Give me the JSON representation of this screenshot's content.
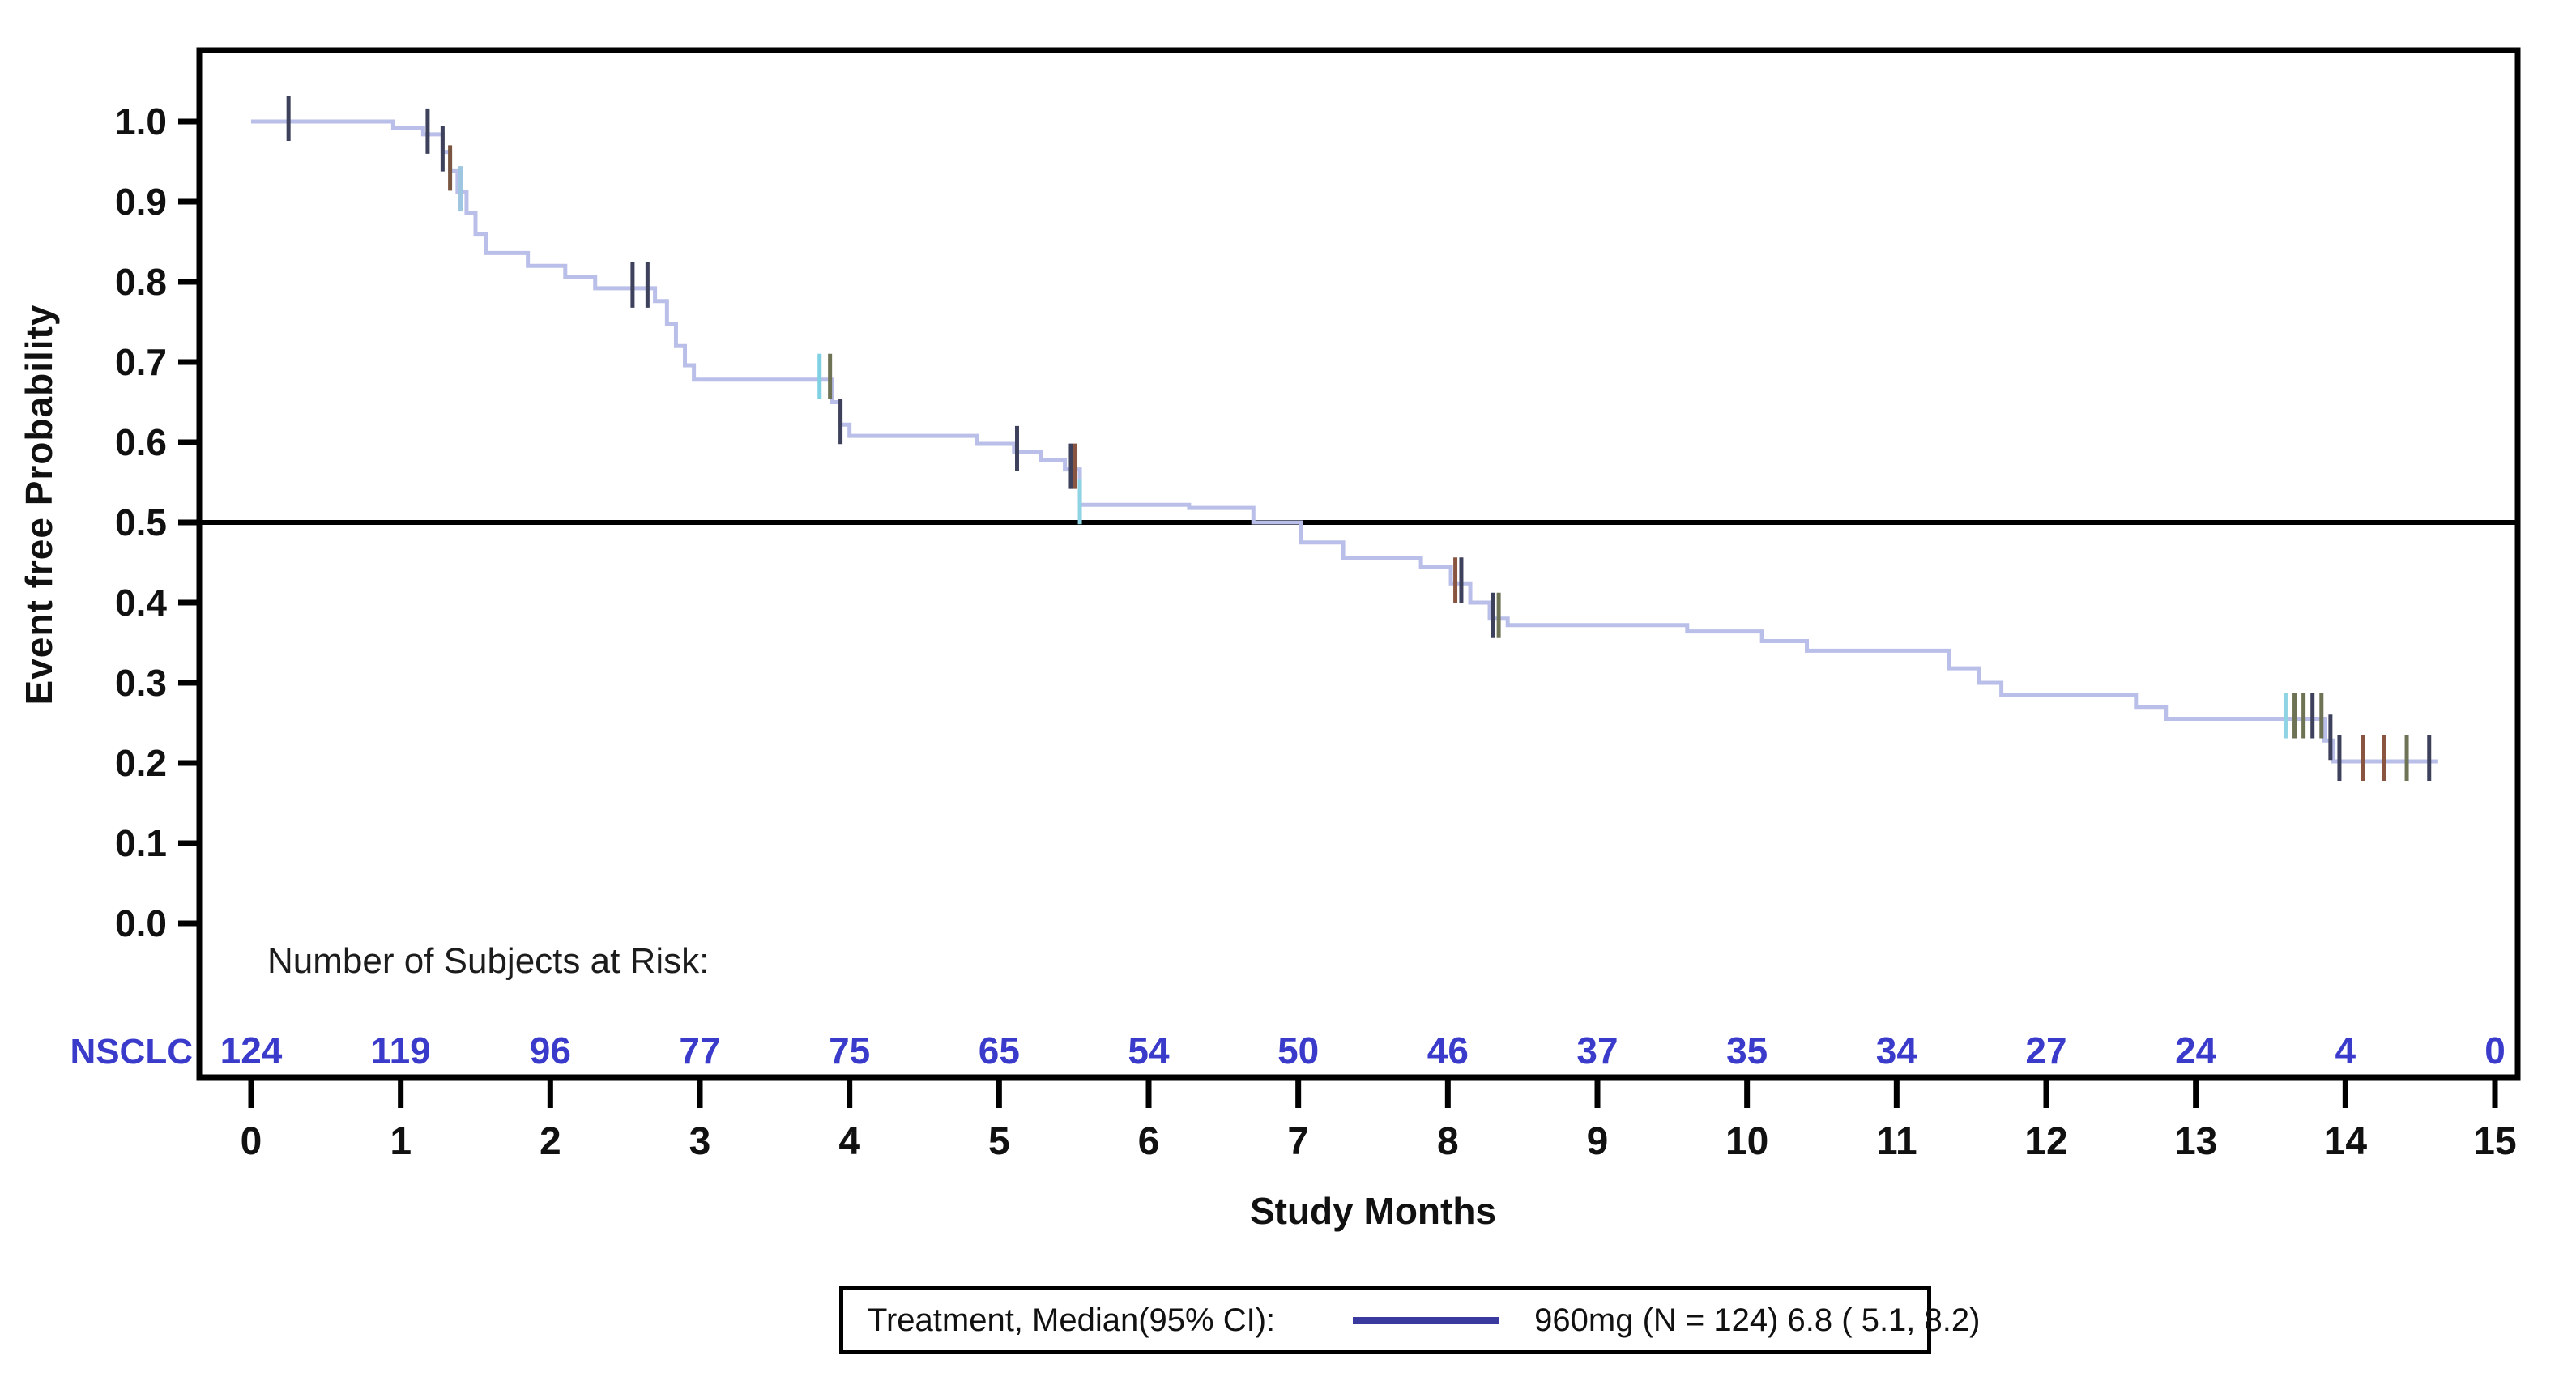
{
  "figure": {
    "background": "#ffffff",
    "frame_color": "#000000",
    "text_color": "#111111"
  },
  "legend": {
    "prefix": "Treatment, Median(95% CI):",
    "entry": "960mg (N = 124) 6.8 ( 5.1, 8.2)",
    "line_color": "#3a3a9e"
  },
  "chart_data": {
    "type": "line",
    "subtype": "kaplan-meier-step",
    "title": "",
    "xlabel": "Study Months",
    "ylabel": "Event free Probability",
    "xlim": [
      0,
      15
    ],
    "ylim": [
      0.0,
      1.0
    ],
    "xticks": [
      0,
      1,
      2,
      3,
      4,
      5,
      6,
      7,
      8,
      9,
      10,
      11,
      12,
      13,
      14,
      15
    ],
    "ytick_labels": [
      "1.0",
      "0.9",
      "0.8",
      "0.7",
      "0.6",
      "0.5",
      "0.4",
      "0.3",
      "0.2",
      "0.1",
      "0.0"
    ],
    "ytick_values": [
      1.0,
      0.9,
      0.8,
      0.7,
      0.6,
      0.5,
      0.4,
      0.3,
      0.2,
      0.1,
      0.0
    ],
    "grid": false,
    "reference_line_y": 0.5,
    "legend_position": "bottom",
    "series": [
      {
        "name": "960mg",
        "n": 124,
        "median": 6.8,
        "ci95": [
          5.1,
          8.2
        ],
        "color": "#b9bfe8",
        "line_width": 5,
        "steps": [
          [
            0.0,
            1.0
          ],
          [
            0.95,
            0.992
          ],
          [
            1.15,
            0.984
          ],
          [
            1.28,
            0.962
          ],
          [
            1.33,
            0.938
          ],
          [
            1.38,
            0.912
          ],
          [
            1.44,
            0.886
          ],
          [
            1.5,
            0.86
          ],
          [
            1.57,
            0.836
          ],
          [
            1.85,
            0.82
          ],
          [
            2.1,
            0.806
          ],
          [
            2.3,
            0.792
          ],
          [
            2.7,
            0.776
          ],
          [
            2.78,
            0.748
          ],
          [
            2.84,
            0.72
          ],
          [
            2.9,
            0.696
          ],
          [
            2.96,
            0.678
          ],
          [
            3.88,
            0.65
          ],
          [
            3.94,
            0.622
          ],
          [
            4.0,
            0.608
          ],
          [
            4.85,
            0.598
          ],
          [
            5.1,
            0.588
          ],
          [
            5.28,
            0.578
          ],
          [
            5.44,
            0.566
          ],
          [
            5.54,
            0.522
          ],
          [
            6.27,
            0.518
          ],
          [
            6.7,
            0.5
          ],
          [
            7.02,
            0.475
          ],
          [
            7.3,
            0.456
          ],
          [
            7.82,
            0.444
          ],
          [
            8.02,
            0.424
          ],
          [
            8.15,
            0.4
          ],
          [
            8.28,
            0.38
          ],
          [
            8.4,
            0.372
          ],
          [
            9.6,
            0.364
          ],
          [
            10.1,
            0.352
          ],
          [
            10.4,
            0.34
          ],
          [
            11.35,
            0.318
          ],
          [
            11.55,
            0.3
          ],
          [
            11.7,
            0.285
          ],
          [
            12.6,
            0.27
          ],
          [
            12.8,
            0.255
          ],
          [
            13.86,
            0.228
          ],
          [
            13.92,
            0.202
          ]
        ],
        "end_time": 14.62,
        "censor_default_color": "#3e415c",
        "censor_tick_height": 56,
        "censors": [
          {
            "t": 0.25
          },
          {
            "t": 1.18
          },
          {
            "t": 1.28
          },
          {
            "t": 1.33,
            "c": "#7a5540"
          },
          {
            "t": 1.4,
            "c": "#9fc6e0"
          },
          {
            "t": 2.55
          },
          {
            "t": 2.65
          },
          {
            "t": 3.8,
            "c": "#7fd0e2"
          },
          {
            "t": 3.87,
            "c": "#6f7355"
          },
          {
            "t": 3.94
          },
          {
            "t": 5.12
          },
          {
            "t": 5.48
          },
          {
            "t": 5.51,
            "c": "#8a5540"
          },
          {
            "t": 5.54,
            "c": "#8fd4e4"
          },
          {
            "t": 8.05,
            "c": "#8a5540"
          },
          {
            "t": 8.09
          },
          {
            "t": 8.3
          },
          {
            "t": 8.34,
            "c": "#6f7355"
          },
          {
            "t": 13.6,
            "c": "#8fd4e4"
          },
          {
            "t": 13.66,
            "c": "#6f7355"
          },
          {
            "t": 13.72,
            "c": "#6f7355"
          },
          {
            "t": 13.78
          },
          {
            "t": 13.84,
            "c": "#6f7355"
          },
          {
            "t": 13.9
          },
          {
            "t": 13.96
          },
          {
            "t": 14.12,
            "c": "#8a5540"
          },
          {
            "t": 14.26,
            "c": "#8a5540"
          },
          {
            "t": 14.41,
            "c": "#6f7355"
          },
          {
            "t": 14.56
          }
        ]
      }
    ],
    "at_risk": {
      "header": "Number of Subjects at Risk:",
      "label": "NSCLC",
      "color": "#3b3bcb",
      "times": [
        0,
        1,
        2,
        3,
        4,
        5,
        6,
        7,
        8,
        9,
        10,
        11,
        12,
        13,
        14,
        15
      ],
      "counts": [
        124,
        119,
        96,
        77,
        75,
        65,
        54,
        50,
        46,
        37,
        35,
        34,
        27,
        24,
        4,
        0
      ]
    }
  }
}
